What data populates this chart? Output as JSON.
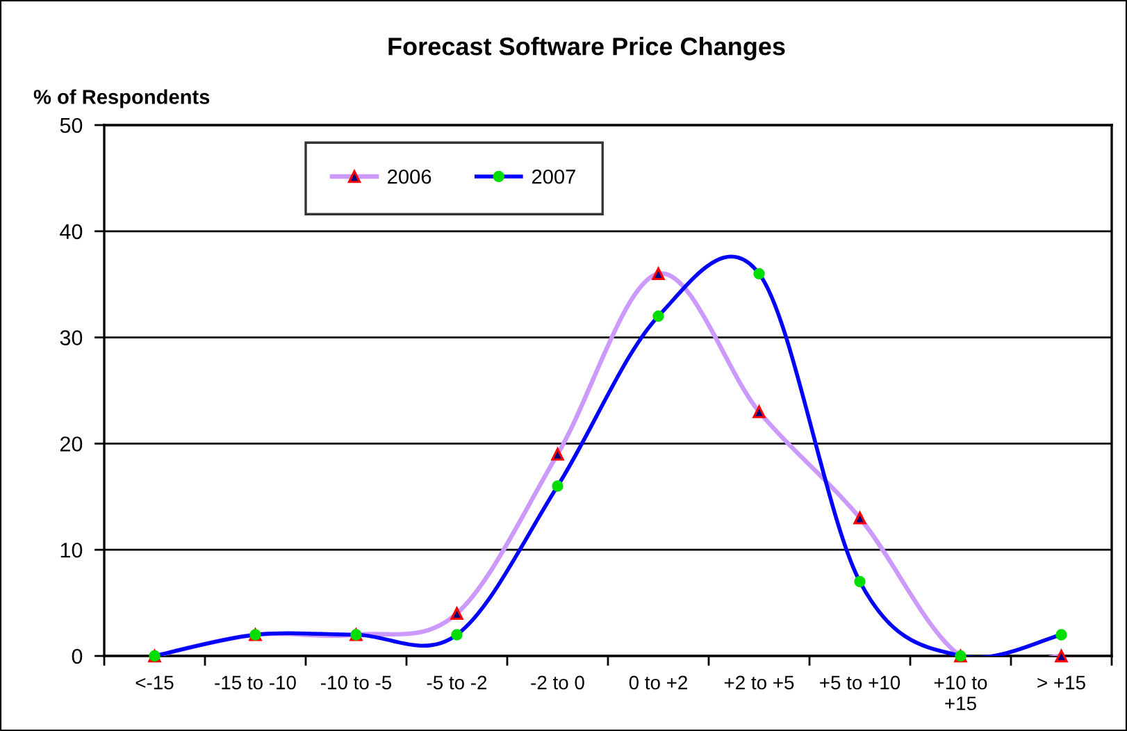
{
  "chart_data": {
    "type": "line",
    "title": "Forecast Software Price Changes",
    "ylabel": "% of Respondents",
    "categories": [
      "<-15",
      "-15 to -10",
      "-10 to -5",
      "-5 to -2",
      "-2 to 0",
      "0 to +2",
      "+2 to +5",
      "+5 to +10",
      "+10 to\n+15",
      "> +15"
    ],
    "series": [
      {
        "name": "2006",
        "color": "#cc99ff",
        "marker": "triangle",
        "colors": [
          "#000080",
          "#000080",
          "#000080",
          "#000080",
          "#000080",
          "#000080",
          "#000080",
          "#000080",
          "#000080",
          "#000080"
        ],
        "values": [
          0,
          2,
          2,
          4,
          19,
          36,
          23,
          13,
          0,
          0
        ]
      },
      {
        "name": "2007",
        "color": "#0000ff",
        "marker": "circle",
        "colors": [
          "#00dd00",
          "#00dd00",
          "#00dd00",
          "#00dd00",
          "#00dd00",
          "#00dd00",
          "#00dd00",
          "#00dd00",
          "#00dd00",
          "#00dd00"
        ],
        "values": [
          0,
          2,
          2,
          2,
          16,
          32,
          36,
          7,
          0,
          2
        ]
      }
    ],
    "ylim": [
      0,
      50
    ],
    "yticks": [
      0,
      10,
      20,
      30,
      40,
      50
    ],
    "grid": "y",
    "legend": "top left"
  }
}
